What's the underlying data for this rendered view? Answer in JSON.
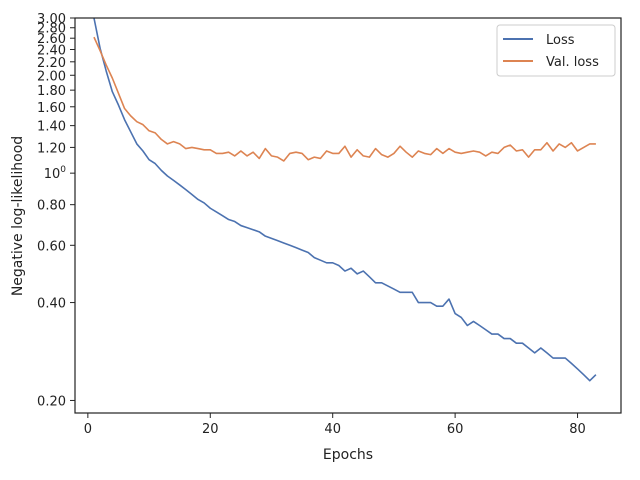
{
  "chart_data": {
    "type": "line",
    "xlabel": "Epochs",
    "ylabel": "Negative log-likelihood",
    "xlim": [
      -2.1,
      87.1
    ],
    "ylim": [
      0.183,
      3.0
    ],
    "yscale": "log",
    "x_ticks": [
      {
        "value": 0,
        "label": "0"
      },
      {
        "value": 20,
        "label": "20"
      },
      {
        "value": 40,
        "label": "40"
      },
      {
        "value": 60,
        "label": "60"
      },
      {
        "value": 80,
        "label": "80"
      }
    ],
    "y_ticks": [
      {
        "value": 0.2,
        "label": "0.20"
      },
      {
        "value": 0.4,
        "label": "0.40"
      },
      {
        "value": 0.6,
        "label": "0.60"
      },
      {
        "value": 0.8,
        "label": "0.80"
      },
      {
        "value": 1.0,
        "label": "10",
        "sup": "0"
      },
      {
        "value": 1.2,
        "label": "1.20"
      },
      {
        "value": 1.4,
        "label": "1.40"
      },
      {
        "value": 1.6,
        "label": "1.60"
      },
      {
        "value": 1.8,
        "label": "1.80"
      },
      {
        "value": 2.0,
        "label": "2.00"
      },
      {
        "value": 2.2,
        "label": "2.20"
      },
      {
        "value": 2.4,
        "label": "2.40"
      },
      {
        "value": 2.6,
        "label": "2.60"
      },
      {
        "value": 2.8,
        "label": "2.80"
      },
      {
        "value": 3.0,
        "label": "3.00"
      }
    ],
    "legend_position": "top-right",
    "grid": false,
    "x": [
      1,
      2,
      3,
      4,
      5,
      6,
      7,
      8,
      9,
      10,
      11,
      12,
      13,
      14,
      15,
      16,
      17,
      18,
      19,
      20,
      21,
      22,
      23,
      24,
      25,
      26,
      27,
      28,
      29,
      30,
      31,
      32,
      33,
      34,
      35,
      36,
      37,
      38,
      39,
      40,
      41,
      42,
      43,
      44,
      45,
      46,
      47,
      48,
      49,
      50,
      51,
      52,
      53,
      54,
      55,
      56,
      57,
      58,
      59,
      60,
      61,
      62,
      63,
      64,
      65,
      66,
      67,
      68,
      69,
      70,
      71,
      72,
      73,
      74,
      75,
      76,
      77,
      78,
      79,
      80,
      81,
      82,
      83
    ],
    "series": [
      {
        "name": "Loss",
        "color": "#4c72b0",
        "values": [
          3.0,
          2.42,
          2.06,
          1.78,
          1.62,
          1.46,
          1.34,
          1.23,
          1.17,
          1.1,
          1.07,
          1.02,
          0.98,
          0.95,
          0.92,
          0.89,
          0.86,
          0.83,
          0.81,
          0.78,
          0.76,
          0.74,
          0.72,
          0.71,
          0.69,
          0.68,
          0.67,
          0.66,
          0.64,
          0.63,
          0.62,
          0.61,
          0.6,
          0.59,
          0.58,
          0.57,
          0.55,
          0.54,
          0.53,
          0.53,
          0.52,
          0.5,
          0.51,
          0.49,
          0.5,
          0.48,
          0.46,
          0.46,
          0.45,
          0.44,
          0.43,
          0.43,
          0.43,
          0.4,
          0.4,
          0.4,
          0.39,
          0.39,
          0.41,
          0.37,
          0.36,
          0.34,
          0.35,
          0.34,
          0.33,
          0.32,
          0.32,
          0.31,
          0.31,
          0.3,
          0.3,
          0.29,
          0.28,
          0.29,
          0.28,
          0.27,
          0.27,
          0.27,
          0.26,
          0.25,
          0.24,
          0.23,
          0.24
        ]
      },
      {
        "name": "Val. loss",
        "color": "#dd8452",
        "values": [
          2.62,
          2.38,
          2.15,
          1.96,
          1.76,
          1.58,
          1.5,
          1.44,
          1.41,
          1.35,
          1.33,
          1.27,
          1.23,
          1.25,
          1.23,
          1.19,
          1.2,
          1.19,
          1.18,
          1.18,
          1.15,
          1.15,
          1.16,
          1.13,
          1.17,
          1.13,
          1.16,
          1.11,
          1.19,
          1.13,
          1.12,
          1.09,
          1.15,
          1.16,
          1.15,
          1.1,
          1.12,
          1.11,
          1.17,
          1.15,
          1.15,
          1.21,
          1.12,
          1.18,
          1.13,
          1.12,
          1.19,
          1.14,
          1.12,
          1.15,
          1.21,
          1.16,
          1.12,
          1.17,
          1.15,
          1.14,
          1.19,
          1.15,
          1.19,
          1.16,
          1.15,
          1.16,
          1.17,
          1.16,
          1.13,
          1.16,
          1.15,
          1.2,
          1.22,
          1.17,
          1.18,
          1.12,
          1.18,
          1.18,
          1.24,
          1.17,
          1.23,
          1.2,
          1.24,
          1.17,
          1.2,
          1.23,
          1.23
        ]
      }
    ]
  }
}
